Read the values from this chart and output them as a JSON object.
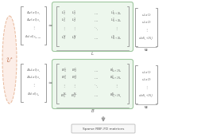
{
  "bg_color": "#ffffff",
  "neural_net_color": "#fceee8",
  "neural_net_border": "#e8b89a",
  "matrix_L_color": "#edf7ed",
  "matrix_L_border": "#a0c8a0",
  "matrix_B_color": "#edf7ed",
  "matrix_B_border": "#a0c8a0",
  "bracket_color": "#999999",
  "text_color": "#666666",
  "arrow_color": "#999999",
  "box_border": "#bbbbbb",
  "U_label": "\\mathcal{U}",
  "L_label": "L",
  "B_label": "B",
  "bottom_label": "Sparse RBF-FD matrices",
  "figw": 2.58,
  "figh": 1.72,
  "dpi": 100
}
